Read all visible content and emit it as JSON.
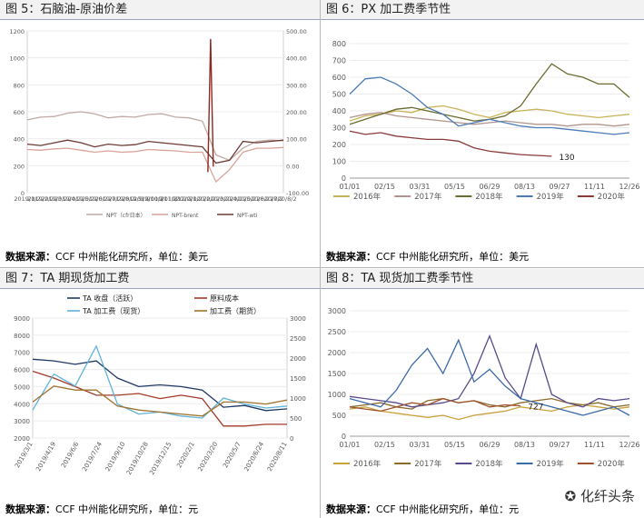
{
  "panels": [
    {
      "title": "图 5：石脑油-原油价差",
      "source_label": "数据来源：",
      "source_text": "CCF 中州能化研究所，单位：美元",
      "chart": {
        "type": "line",
        "y_left_ticks": [
          "0",
          "200",
          "400",
          "600",
          "800",
          "1000",
          "1200"
        ],
        "ylim_left": [
          0,
          1200
        ],
        "y_right_ticks": [
          "-100.00",
          "0.00",
          "100.00",
          "200.00",
          "300.00",
          "400.00",
          "500.00"
        ],
        "ylim_right": [
          -100,
          500
        ],
        "x_ticks": [
          "2019/1/2",
          "2019/2/2",
          "2019/3/2",
          "2019/4/2",
          "2019/5/2",
          "2019/6/2",
          "2019/7/2",
          "2019/8/2",
          "2019/9/2",
          "2019/10/2",
          "2019/11/2",
          "2019/12/2",
          "2020/1/2",
          "2020/2/2",
          "2020/3/2",
          "2020/4/2",
          "2020/5/2",
          "2020/6/2",
          "2020/7/2",
          "2020/8/2"
        ],
        "series": [
          {
            "name": "NPT（cfr日本）",
            "color": "#c0aaa5",
            "axis": "left",
            "values": [
              540,
              560,
              565,
              590,
              600,
              585,
              555,
              565,
              560,
              580,
              585,
              560,
              555,
              530,
              280,
              240,
              330,
              380,
              390,
              385
            ]
          },
          {
            "name": "NPT-brent",
            "color": "#d9a39a",
            "axis": "left",
            "values": [
              320,
              315,
              325,
              330,
              315,
              300,
              310,
              300,
              305,
              320,
              315,
              310,
              300,
              300,
              80,
              170,
              300,
              330,
              330,
              335
            ]
          },
          {
            "name": "NPT-wti",
            "color": "#6e3b34",
            "axis": "right",
            "values": [
              80,
              75,
              85,
              95,
              85,
              70,
              80,
              75,
              78,
              90,
              85,
              80,
              75,
              70,
              10,
              20,
              90,
              85,
              90,
              95
            ]
          }
        ],
        "spike": {
          "series": "NPT-wti",
          "x": "2020/4/20",
          "value": 470
        }
      }
    },
    {
      "title": "图 6：PX 加工费季节性",
      "source_label": "数据来源：",
      "source_text": "CCF 中州能化研究所，单位：美元",
      "chart": {
        "type": "line",
        "y_ticks": [
          "0",
          "100",
          "200",
          "300",
          "400",
          "500",
          "600",
          "700",
          "800"
        ],
        "ylim": [
          0,
          800
        ],
        "x_ticks": [
          "01/01",
          "02/15",
          "03/31",
          "05/15",
          "06/29",
          "08/13",
          "09/27",
          "11/11",
          "12/26"
        ],
        "annotation": "130",
        "series": [
          {
            "name": "2016年",
            "color": "#c9b35a",
            "values": [
              340,
              370,
              380,
              400,
              390,
              420,
              430,
              410,
              380,
              360,
              390,
              400,
              410,
              400,
              380,
              370,
              360,
              370,
              380
            ]
          },
          {
            "name": "2017年",
            "color": "#b2948d",
            "values": [
              360,
              380,
              390,
              370,
              360,
              350,
              340,
              330,
              320,
              330,
              340,
              330,
              320,
              320,
              310,
              320,
              320,
              310,
              320
            ]
          },
          {
            "name": "2018年",
            "color": "#6b6b2f",
            "values": [
              320,
              350,
              380,
              410,
              420,
              400,
              380,
              360,
              340,
              350,
              370,
              430,
              560,
              680,
              620,
              600,
              560,
              560,
              480
            ]
          },
          {
            "name": "2019年",
            "color": "#4a7bb7",
            "values": [
              500,
              590,
              600,
              560,
              500,
              420,
              380,
              310,
              330,
              350,
              330,
              310,
              300,
              300,
              290,
              280,
              270,
              260,
              270
            ]
          },
          {
            "name": "2020年",
            "color": "#8b3a3a",
            "values": [
              280,
              260,
              270,
              250,
              240,
              230,
              230,
              220,
              180,
              160,
              150,
              140,
              135,
              130,
              null,
              null,
              null,
              null,
              null
            ]
          }
        ],
        "legend": [
          "2016年",
          "2017年",
          "2018年",
          "2019年",
          "2020年"
        ]
      }
    },
    {
      "title": "图 7：TA 期现货加工费",
      "source_label": "数据来源：",
      "source_text": "CCF 中州能化研究所，单位：元",
      "chart": {
        "type": "line",
        "y_left_ticks": [
          "2000",
          "3000",
          "4000",
          "5000",
          "6000",
          "7000",
          "8000",
          "9000"
        ],
        "ylim_left": [
          2000,
          9000
        ],
        "y_right_ticks": [
          "0",
          "500",
          "1000",
          "1500",
          "2000",
          "2500",
          "3000"
        ],
        "ylim_right": [
          0,
          3000
        ],
        "x_ticks": [
          "2019/3/1",
          "2019/4/19",
          "2019/6/6",
          "2019/7/24",
          "2019/9/10",
          "2019/10/28",
          "2019/12/15",
          "2020/2/1",
          "2020/3/20",
          "2020/5/7",
          "2020/6/24",
          "2020/8/11"
        ],
        "legend": [
          "TA 收盘（活跃）",
          "原料成本",
          "TA 加工费（现货）",
          "加工费（期货）"
        ],
        "series": [
          {
            "name": "TA 收盘（活跃）",
            "color": "#1f3864",
            "axis": "left",
            "values": [
              6600,
              6500,
              6300,
              6500,
              5500,
              5000,
              5100,
              5000,
              4800,
              3800,
              3900,
              3600,
              3700
            ]
          },
          {
            "name": "原料成本",
            "color": "#a23b2a",
            "axis": "left",
            "values": [
              5900,
              5500,
              5000,
              4500,
              4500,
              4600,
              4300,
              4500,
              4300,
              2700,
              2700,
              2800,
              2800
            ]
          },
          {
            "name": "TA 加工费（现货）",
            "color": "#5fb3d9",
            "axis": "right",
            "values": [
              700,
              1600,
              1300,
              2300,
              850,
              600,
              650,
              550,
              500,
              1000,
              850,
              750,
              800
            ]
          },
          {
            "name": "加工费（期货）",
            "color": "#a0732e",
            "axis": "right",
            "values": [
              900,
              1300,
              1200,
              1200,
              800,
              700,
              650,
              600,
              550,
              900,
              900,
              850,
              950
            ]
          }
        ]
      }
    },
    {
      "title": "图 8：TA 现货加工费季节性",
      "source_label": "数据来源：",
      "source_text": "CCF 中州能化研究所，单位：元",
      "chart": {
        "type": "line",
        "y_ticks": [
          "0",
          "500",
          "1000",
          "1500",
          "2000",
          "2500",
          "3000"
        ],
        "ylim": [
          0,
          3000
        ],
        "x_ticks": [
          "01/01",
          "02/15",
          "03/31",
          "05/15",
          "06/29",
          "08/13",
          "09/27",
          "11/11",
          "12/26"
        ],
        "annotation": "727",
        "series": [
          {
            "name": "2016年",
            "color": "#c9a13d",
            "values": [
              650,
              700,
              600,
              550,
              500,
              450,
              500,
              400,
              500,
              550,
              600,
              700,
              650,
              600,
              700,
              750,
              700,
              650,
              700
            ]
          },
          {
            "name": "2017年",
            "color": "#8b6b2b",
            "values": [
              700,
              750,
              800,
              700,
              650,
              850,
              900,
              800,
              850,
              750,
              700,
              800,
              850,
              900,
              800,
              750,
              800,
              700,
              750
            ]
          },
          {
            "name": "2018年",
            "color": "#5a4a8a",
            "values": [
              950,
              900,
              850,
              800,
              700,
              750,
              800,
              900,
              1500,
              2400,
              1400,
              900,
              2200,
              1000,
              800,
              700,
              900,
              850,
              900
            ]
          },
          {
            "name": "2019年",
            "color": "#3c6aa8",
            "values": [
              900,
              800,
              700,
              1100,
              1700,
              2100,
              1500,
              2300,
              1300,
              1600,
              1200,
              900,
              800,
              700,
              600,
              500,
              600,
              700,
              500
            ]
          },
          {
            "name": "2020年",
            "color": "#a0522d",
            "values": [
              700,
              650,
              600,
              700,
              800,
              750,
              900,
              800,
              850,
              700,
              750,
              727,
              null,
              null,
              null,
              null,
              null,
              null,
              null
            ]
          }
        ],
        "legend": [
          "2016年",
          "2017年",
          "2018年",
          "2019年",
          "2020年"
        ]
      }
    }
  ],
  "watermark": "化纤头条"
}
